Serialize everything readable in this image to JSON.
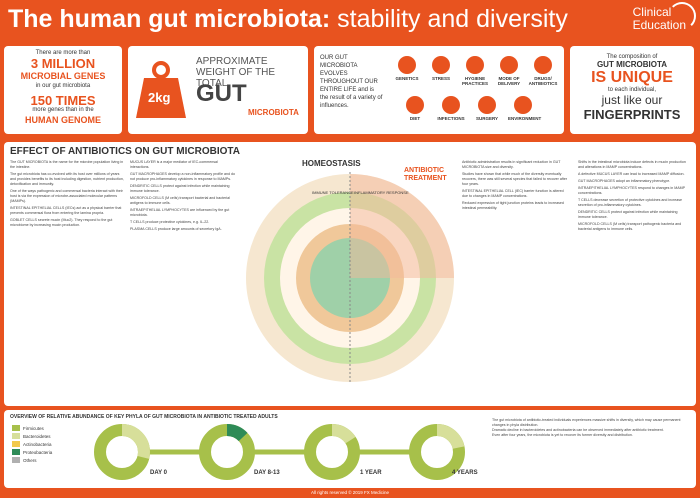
{
  "header": {
    "title_bold": "The human gut microbiota:",
    "title_rest": " stability and diversity",
    "brand_line1": "Clinical",
    "brand_line2": "Education"
  },
  "banner": {
    "box1": {
      "line1": "There are more than",
      "line2": "3 MILLION",
      "line3": "MICROBIAL GENES",
      "line4": "in our gut microbiota",
      "line5": "150 TIMES",
      "line6": "more genes than in the",
      "line7": "HUMAN GENOME"
    },
    "box2": {
      "line1": "APPROXIMATE",
      "line2": "WEIGHT OF THE TOTAL",
      "weight": "2kg",
      "gut": "GUT",
      "microbiota": "MICROBIOTA"
    },
    "box3": {
      "intro": "OUR GUT MICROBIOTA EVOLVES THROUGHOUT OUR ENTIRE LIFE and is the result of a variety of influences.",
      "factors": [
        "GENETICS",
        "STRESS",
        "HYGIENE PRACTICES",
        "MODE OF DELIVERY",
        "DRUGS/ ANTIBIOTICS",
        "DIET",
        "INFECTIONS",
        "SURGERY",
        "ENVIRONMENT"
      ]
    },
    "box4": {
      "line1": "The composition of",
      "line2": "GUT MICROBIOTA",
      "line3": "IS UNIQUE",
      "line4": "to each individual,",
      "line5": "just like our",
      "line6": "FINGERPRINTS"
    }
  },
  "main": {
    "section_title": "EFFECT OF ANTIBIOTICS ON GUT MICROBIOTA",
    "diagram": {
      "homeostasis": "HOMEOSTASIS",
      "antibiotic": "ANTIBIOTIC",
      "treatment": "TREATMENT",
      "immune_tolerance": "IMMUNE TOLERANCE",
      "inflammatory_response": "INFLAMMATORY RESPONSE"
    },
    "col1": [
      "The GUT MICROBIOTA is the name for the microbe population living in the intestine.",
      "The gut microbiota has co-evolved with its host over millions of years and provides benefits to its host including digestion, nutrient production, detoxification and immunity.",
      "One of the ways pathogenic and commensal bacteria interact with their host is via the expression of microbe-associated molecular patterns (MAMPs).",
      "INTESTINAL EPITHELIAL CELLS (IECs) act as a physical barrier that prevents commensal flora from entering the lamina propria.",
      "GOBLET CELLS secrete mucin (Muc2). They respond to the gut microbiome by increasing mucin production."
    ],
    "col2": [
      "MUCUS LAYER is a major mediator of IEC-commensal interactions.",
      "GUT MACROPHAGES develop a non-inflammatory profile and do not produce pro-inflammatory cytokines in response to MAMPs.",
      "DENDRITIC CELLS protect against infection while maintaining immune tolerance.",
      "MICROFOLD CELLS (M cells) transport bacterial and bacterial antigens to immune cells.",
      "INTRAEPITHELIAL LYMPHOCYTES are influenced by the gut microbiota.",
      "T CELLS produce protective cytokines, e.g. IL-22.",
      "PLASMA CELLS produce large amounts of secretory IgA."
    ],
    "col3": [
      "Antibiotic administration results in significant reduction in GUT MICROBIOTA size and diversity.",
      "Studies have shown that while much of the diversity eventually recovers, there was still several species that failed to recover after four years.",
      "INTESTINAL EPITHELIAL CELL (IEC) barrier function is altered due to changes in MAMP concentrations.",
      "Reduced expression of tight junction proteins leads to increased intestinal permeability."
    ],
    "col4": [
      "Shifts in the intestinal microbiota induce defects in mucin production and alterations in MAMP concentrations.",
      "A defective MUCUS LAYER can lead to increased MAMP diffusion.",
      "GUT MACROPHAGES adopt an inflammatory phenotype.",
      "INTRAEPITHELIAL LYMPHOCYTES respond to changes in MAMP concentrations.",
      "T CELLS decrease secretion of protective cytokines and increase secretion of pro-inflammatory cytokines.",
      "DENDRITIC CELLS protect against infection while maintaining immune tolerance.",
      "MICROFOLD CELLS (M cells) transport pathogenic bacteria and bacterial antigens to immune cells."
    ]
  },
  "bottom": {
    "title": "OVERVIEW OF RELATIVE ABUNDANCE OF KEY PHYLA OF GUT MICROBIOTA IN ANTIBIOTIC TREATED ADULTS",
    "legend": [
      {
        "name": "Firmicutes",
        "color": "#a7c04a"
      },
      {
        "name": "Bacteroidetes",
        "color": "#d7df9a"
      },
      {
        "name": "Actinobacteria",
        "color": "#f2c94c"
      },
      {
        "name": "Proteobacteria",
        "color": "#2e8b57"
      },
      {
        "name": "Others",
        "color": "#b0b0b0"
      }
    ],
    "timepoints": [
      "DAY 0",
      "DAY 8-13",
      "1 YEAR",
      "4 YEARS"
    ],
    "text": [
      "The gut microbiota of antibiotic-treated individuals experiences massive shifts in diversity, which may cause permanent changes in phyla distribution.",
      "Dramatic decline in bacteroidetes and actinobacteria can be observed immediately after antibiotic treatment.",
      "Even after four years, the microbiota is yet to recover its former diversity and distribution."
    ]
  },
  "footer": "All rights reserved © 2019 FX Medicine"
}
